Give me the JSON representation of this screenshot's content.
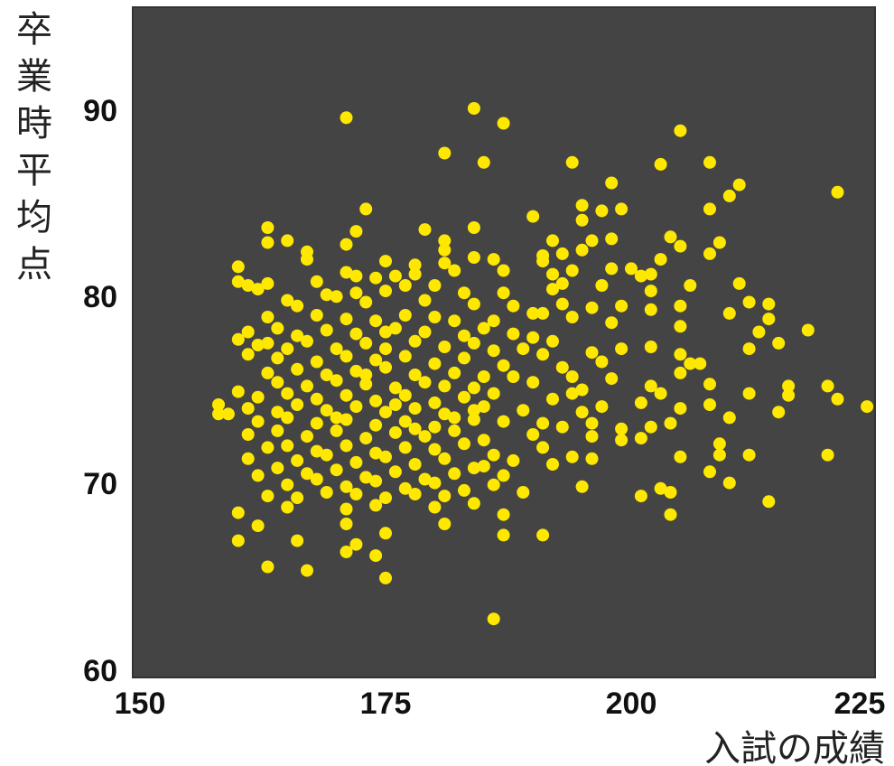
{
  "colors": {
    "plot_background": "#444444",
    "plot_border": "#333333",
    "point_fill": "#ffe800",
    "text": "#111111"
  },
  "chart_data": {
    "type": "scatter",
    "xlabel": "入試の成績",
    "ylabel": "卒業時平均点",
    "xlim": [
      150,
      226
    ],
    "ylim": [
      60,
      95
    ],
    "x_ticks": [
      "150",
      "175",
      "200",
      "225"
    ],
    "y_ticks": [
      "60",
      "70",
      "80",
      "90"
    ],
    "grid": false,
    "legend": "none",
    "points": [
      [
        171.0,
        89.7
      ],
      [
        184.0,
        90.2
      ],
      [
        187.0,
        89.4
      ],
      [
        181.0,
        87.8
      ],
      [
        185.0,
        87.3
      ],
      [
        194.0,
        87.3
      ],
      [
        205.0,
        89.0
      ],
      [
        203.0,
        87.2
      ],
      [
        208.0,
        87.3
      ],
      [
        198.0,
        86.2
      ],
      [
        211.0,
        86.1
      ],
      [
        210.0,
        85.5
      ],
      [
        221.0,
        85.7
      ],
      [
        195.0,
        85.0
      ],
      [
        197.0,
        84.7
      ],
      [
        199.0,
        84.8
      ],
      [
        208.0,
        84.8
      ],
      [
        190.0,
        84.4
      ],
      [
        195.0,
        84.2
      ],
      [
        173.0,
        84.8
      ],
      [
        163.0,
        83.8
      ],
      [
        172.0,
        83.6
      ],
      [
        179.0,
        83.7
      ],
      [
        184.0,
        83.8
      ],
      [
        165.0,
        83.1
      ],
      [
        163.0,
        83.0
      ],
      [
        171.0,
        82.9
      ],
      [
        181.0,
        83.1
      ],
      [
        192.0,
        83.1
      ],
      [
        196.0,
        83.1
      ],
      [
        198.0,
        83.2
      ],
      [
        204.0,
        83.3
      ],
      [
        205.0,
        82.8
      ],
      [
        209.0,
        83.0
      ],
      [
        167.0,
        82.5
      ],
      [
        181.0,
        82.6
      ],
      [
        191.0,
        82.3
      ],
      [
        193.0,
        82.4
      ],
      [
        195.0,
        82.6
      ],
      [
        208.0,
        82.4
      ],
      [
        167.0,
        82.1
      ],
      [
        175.0,
        82.0
      ],
      [
        178.0,
        81.8
      ],
      [
        181.0,
        81.9
      ],
      [
        184.0,
        82.2
      ],
      [
        186.0,
        82.1
      ],
      [
        191.0,
        82.0
      ],
      [
        200.0,
        81.6
      ],
      [
        203.0,
        82.1
      ],
      [
        198.0,
        81.6
      ],
      [
        160.0,
        81.7
      ],
      [
        171.0,
        81.4
      ],
      [
        172.0,
        81.2
      ],
      [
        174.0,
        81.1
      ],
      [
        176.0,
        81.2
      ],
      [
        178.0,
        81.3
      ],
      [
        182.0,
        81.5
      ],
      [
        187.0,
        81.5
      ],
      [
        192.0,
        81.3
      ],
      [
        194.0,
        81.5
      ],
      [
        201.0,
        81.2
      ],
      [
        202.0,
        81.3
      ],
      [
        160.0,
        80.9
      ],
      [
        161.0,
        80.7
      ],
      [
        162.0,
        80.5
      ],
      [
        163.0,
        80.8
      ],
      [
        168.0,
        80.9
      ],
      [
        172.0,
        80.3
      ],
      [
        175.0,
        80.4
      ],
      [
        177.0,
        80.7
      ],
      [
        180.0,
        80.7
      ],
      [
        183.0,
        80.3
      ],
      [
        187.0,
        80.3
      ],
      [
        192.0,
        80.5
      ],
      [
        193.0,
        80.8
      ],
      [
        197.0,
        80.7
      ],
      [
        206.0,
        80.7
      ],
      [
        211.0,
        80.8
      ],
      [
        202.0,
        80.4
      ],
      [
        169.0,
        80.2
      ],
      [
        165.0,
        79.9
      ],
      [
        166.0,
        79.6
      ],
      [
        170.0,
        80.1
      ],
      [
        173.0,
        79.8
      ],
      [
        179.0,
        79.9
      ],
      [
        184.0,
        79.7
      ],
      [
        188.0,
        79.6
      ],
      [
        190.0,
        79.2
      ],
      [
        193.0,
        79.7
      ],
      [
        196.0,
        79.5
      ],
      [
        199.0,
        79.6
      ],
      [
        202.0,
        79.4
      ],
      [
        205.0,
        79.6
      ],
      [
        212.0,
        79.8
      ],
      [
        214.0,
        79.7
      ],
      [
        210.0,
        79.2
      ],
      [
        163.0,
        79.0
      ],
      [
        168.0,
        79.1
      ],
      [
        171.0,
        78.9
      ],
      [
        174.0,
        78.8
      ],
      [
        177.0,
        79.1
      ],
      [
        180.0,
        79.0
      ],
      [
        182.0,
        78.8
      ],
      [
        186.0,
        78.8
      ],
      [
        191.0,
        79.2
      ],
      [
        194.0,
        79.0
      ],
      [
        205.0,
        78.5
      ],
      [
        213.0,
        78.2
      ],
      [
        218.0,
        78.3
      ],
      [
        214.0,
        78.9
      ],
      [
        161.0,
        78.2
      ],
      [
        164.0,
        78.4
      ],
      [
        166.0,
        78.0
      ],
      [
        169.0,
        78.3
      ],
      [
        172.0,
        78.1
      ],
      [
        176.0,
        78.4
      ],
      [
        179.0,
        78.2
      ],
      [
        183.0,
        78.0
      ],
      [
        185.0,
        78.4
      ],
      [
        188.0,
        78.1
      ],
      [
        190.0,
        77.9
      ],
      [
        192.0,
        77.7
      ],
      [
        160.0,
        77.8
      ],
      [
        162.0,
        77.5
      ],
      [
        163.0,
        77.6
      ],
      [
        165.0,
        77.3
      ],
      [
        167.0,
        77.7
      ],
      [
        170.0,
        77.3
      ],
      [
        173.0,
        77.6
      ],
      [
        175.0,
        77.3
      ],
      [
        178.0,
        77.7
      ],
      [
        181.0,
        77.4
      ],
      [
        184.0,
        77.6
      ],
      [
        186.0,
        77.2
      ],
      [
        189.0,
        77.3
      ],
      [
        191.0,
        77.0
      ],
      [
        196.0,
        77.1
      ],
      [
        199.0,
        77.3
      ],
      [
        202.0,
        77.4
      ],
      [
        205.0,
        77.0
      ],
      [
        212.0,
        77.3
      ],
      [
        215.0,
        77.6
      ],
      [
        161.0,
        77.0
      ],
      [
        164.0,
        76.8
      ],
      [
        168.0,
        76.6
      ],
      [
        171.0,
        76.9
      ],
      [
        174.0,
        76.7
      ],
      [
        177.0,
        76.9
      ],
      [
        180.0,
        76.5
      ],
      [
        183.0,
        76.8
      ],
      [
        187.0,
        76.4
      ],
      [
        193.0,
        76.3
      ],
      [
        197.0,
        76.6
      ],
      [
        206.0,
        76.5
      ],
      [
        207.0,
        76.5
      ],
      [
        163.0,
        76.0
      ],
      [
        166.0,
        76.2
      ],
      [
        169.0,
        75.9
      ],
      [
        172.0,
        76.1
      ],
      [
        175.0,
        76.3
      ],
      [
        178.0,
        75.9
      ],
      [
        182.0,
        76.0
      ],
      [
        185.0,
        75.8
      ],
      [
        194.0,
        75.8
      ],
      [
        198.0,
        75.7
      ],
      [
        205.0,
        76.0
      ],
      [
        164.0,
        75.5
      ],
      [
        167.0,
        75.3
      ],
      [
        170.0,
        75.6
      ],
      [
        173.0,
        75.4
      ],
      [
        176.0,
        75.2
      ],
      [
        179.0,
        75.5
      ],
      [
        181.0,
        75.3
      ],
      [
        184.0,
        75.2
      ],
      [
        190.0,
        75.5
      ],
      [
        195.0,
        75.1
      ],
      [
        202.0,
        75.3
      ],
      [
        208.0,
        75.4
      ],
      [
        216.0,
        75.3
      ],
      [
        220.0,
        75.3
      ],
      [
        160.0,
        75.0
      ],
      [
        162.0,
        74.7
      ],
      [
        165.0,
        74.9
      ],
      [
        168.0,
        74.6
      ],
      [
        171.0,
        74.8
      ],
      [
        174.0,
        74.5
      ],
      [
        177.0,
        74.8
      ],
      [
        180.0,
        74.4
      ],
      [
        183.0,
        74.7
      ],
      [
        186.0,
        74.9
      ],
      [
        192.0,
        74.6
      ],
      [
        194.0,
        74.9
      ],
      [
        203.0,
        74.9
      ],
      [
        212.0,
        74.9
      ],
      [
        216.0,
        74.8
      ],
      [
        221.0,
        74.6
      ],
      [
        158.0,
        74.3
      ],
      [
        161.0,
        74.1
      ],
      [
        164.0,
        73.9
      ],
      [
        166.0,
        74.3
      ],
      [
        169.0,
        74.0
      ],
      [
        172.0,
        74.2
      ],
      [
        175.0,
        73.9
      ],
      [
        178.0,
        74.1
      ],
      [
        181.0,
        73.8
      ],
      [
        185.0,
        74.2
      ],
      [
        189.0,
        74.0
      ],
      [
        195.0,
        73.9
      ],
      [
        197.0,
        74.2
      ],
      [
        201.0,
        74.4
      ],
      [
        205.0,
        74.1
      ],
      [
        208.0,
        74.3
      ],
      [
        215.0,
        73.9
      ],
      [
        224.0,
        74.2
      ],
      [
        159.0,
        73.8
      ],
      [
        162.0,
        73.4
      ],
      [
        165.0,
        73.6
      ],
      [
        168.0,
        73.3
      ],
      [
        171.0,
        73.5
      ],
      [
        174.0,
        73.2
      ],
      [
        177.0,
        73.4
      ],
      [
        180.0,
        73.1
      ],
      [
        184.0,
        73.5
      ],
      [
        187.0,
        73.4
      ],
      [
        191.0,
        73.3
      ],
      [
        193.0,
        73.1
      ],
      [
        196.0,
        73.3
      ],
      [
        199.0,
        73.0
      ],
      [
        202.0,
        73.1
      ],
      [
        204.0,
        73.3
      ],
      [
        161.0,
        72.7
      ],
      [
        164.0,
        72.9
      ],
      [
        167.0,
        72.6
      ],
      [
        170.0,
        72.9
      ],
      [
        173.0,
        72.5
      ],
      [
        176.0,
        72.8
      ],
      [
        179.0,
        72.6
      ],
      [
        182.0,
        72.9
      ],
      [
        185.0,
        72.4
      ],
      [
        190.0,
        72.7
      ],
      [
        196.0,
        72.6
      ],
      [
        199.0,
        72.4
      ],
      [
        201.0,
        72.5
      ],
      [
        163.0,
        72.0
      ],
      [
        165.0,
        72.1
      ],
      [
        168.0,
        71.8
      ],
      [
        171.0,
        72.1
      ],
      [
        174.0,
        71.7
      ],
      [
        177.0,
        72.0
      ],
      [
        180.0,
        71.9
      ],
      [
        183.0,
        72.2
      ],
      [
        186.0,
        71.6
      ],
      [
        191.0,
        72.0
      ],
      [
        194.0,
        71.5
      ],
      [
        161.0,
        71.4
      ],
      [
        166.0,
        71.3
      ],
      [
        169.0,
        71.6
      ],
      [
        172.0,
        71.2
      ],
      [
        175.0,
        71.5
      ],
      [
        178.0,
        71.1
      ],
      [
        181.0,
        71.4
      ],
      [
        185.0,
        71.0
      ],
      [
        188.0,
        71.3
      ],
      [
        192.0,
        71.1
      ],
      [
        196.0,
        71.4
      ],
      [
        205.0,
        71.5
      ],
      [
        209.0,
        71.6
      ],
      [
        212.0,
        71.6
      ],
      [
        220.0,
        71.6
      ],
      [
        162.0,
        70.5
      ],
      [
        164.0,
        70.9
      ],
      [
        167.0,
        70.6
      ],
      [
        170.0,
        70.8
      ],
      [
        173.0,
        70.4
      ],
      [
        176.0,
        70.7
      ],
      [
        179.0,
        70.3
      ],
      [
        182.0,
        70.6
      ],
      [
        184.0,
        70.9
      ],
      [
        187.0,
        70.5
      ],
      [
        208.0,
        70.7
      ],
      [
        165.0,
        70.0
      ],
      [
        168.0,
        70.3
      ],
      [
        171.0,
        69.9
      ],
      [
        174.0,
        70.2
      ],
      [
        177.0,
        69.8
      ],
      [
        180.0,
        70.1
      ],
      [
        183.0,
        69.7
      ],
      [
        186.0,
        70.0
      ],
      [
        189.0,
        69.6
      ],
      [
        195.0,
        69.9
      ],
      [
        203.0,
        69.8
      ],
      [
        210.0,
        70.1
      ],
      [
        163.0,
        69.4
      ],
      [
        166.0,
        69.3
      ],
      [
        169.0,
        69.6
      ],
      [
        172.0,
        69.5
      ],
      [
        175.0,
        69.3
      ],
      [
        178.0,
        69.5
      ],
      [
        181.0,
        69.4
      ],
      [
        184.0,
        69.0
      ],
      [
        201.0,
        69.4
      ],
      [
        204.0,
        69.6
      ],
      [
        214.0,
        69.1
      ],
      [
        160.0,
        68.5
      ],
      [
        165.0,
        68.8
      ],
      [
        171.0,
        68.7
      ],
      [
        174.0,
        68.9
      ],
      [
        180.0,
        68.8
      ],
      [
        187.0,
        68.4
      ],
      [
        204.0,
        68.4
      ],
      [
        162.0,
        67.8
      ],
      [
        171.0,
        67.9
      ],
      [
        181.0,
        67.9
      ],
      [
        175.0,
        67.4
      ],
      [
        187.0,
        67.3
      ],
      [
        191.0,
        67.3
      ],
      [
        160.0,
        67.0
      ],
      [
        166.0,
        67.0
      ],
      [
        172.0,
        66.8
      ],
      [
        171.0,
        66.4
      ],
      [
        174.0,
        66.2
      ],
      [
        163.0,
        65.6
      ],
      [
        167.0,
        65.4
      ],
      [
        175.0,
        65.0
      ],
      [
        186.0,
        62.8
      ],
      [
        184.0,
        74.0
      ],
      [
        176.0,
        74.3
      ],
      [
        173.0,
        75.9
      ],
      [
        170.0,
        73.6
      ],
      [
        178.0,
        73.0
      ],
      [
        182.0,
        73.6
      ],
      [
        175.0,
        78.2
      ],
      [
        188.0,
        75.8
      ],
      [
        198.0,
        78.7
      ],
      [
        210.0,
        73.6
      ],
      [
        158.0,
        73.8
      ],
      [
        209.0,
        72.2
      ]
    ]
  }
}
